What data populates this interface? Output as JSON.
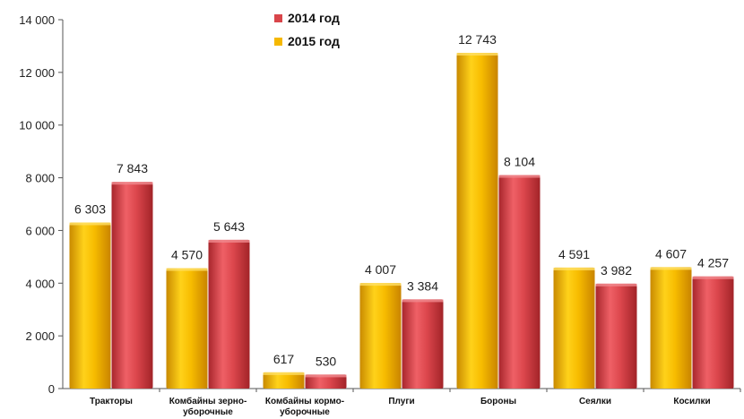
{
  "chart_data": {
    "type": "bar",
    "categories": [
      [
        "Тракторы"
      ],
      [
        "Комбайны зерно-",
        "уборочные"
      ],
      [
        "Комбайны кормо-",
        "уборочные"
      ],
      [
        "Плуги"
      ],
      [
        "Бороны"
      ],
      [
        "Сеялки"
      ],
      [
        "Косилки"
      ]
    ],
    "series": [
      {
        "name": "2015 год",
        "color": "#f5b800",
        "values": [
          6303,
          4570,
          617,
          4007,
          12743,
          4591,
          4607
        ],
        "labels": [
          "6 303",
          "4 570",
          "617",
          "4 007",
          "12 743",
          "4 591",
          "4 607"
        ]
      },
      {
        "name": "2014 год",
        "color": "#d9454a",
        "values": [
          7843,
          5643,
          530,
          3384,
          8104,
          3982,
          4257
        ],
        "labels": [
          "7 843",
          "5 643",
          "530",
          "3 384",
          "8 104",
          "3 982",
          "4 257"
        ]
      }
    ],
    "ylim": [
      0,
      14000
    ],
    "yticks": [
      0,
      2000,
      4000,
      6000,
      8000,
      10000,
      12000,
      14000
    ],
    "ytick_labels": [
      "0",
      "2 000",
      "4 000",
      "6 000",
      "8 000",
      "10 000",
      "12 000",
      "14 000"
    ],
    "legend": {
      "placement": "top-center",
      "entries": [
        {
          "name": "2014 год",
          "color": "#d9454a"
        },
        {
          "name": "2015 год",
          "color": "#f5b800"
        }
      ]
    },
    "grid": false
  }
}
